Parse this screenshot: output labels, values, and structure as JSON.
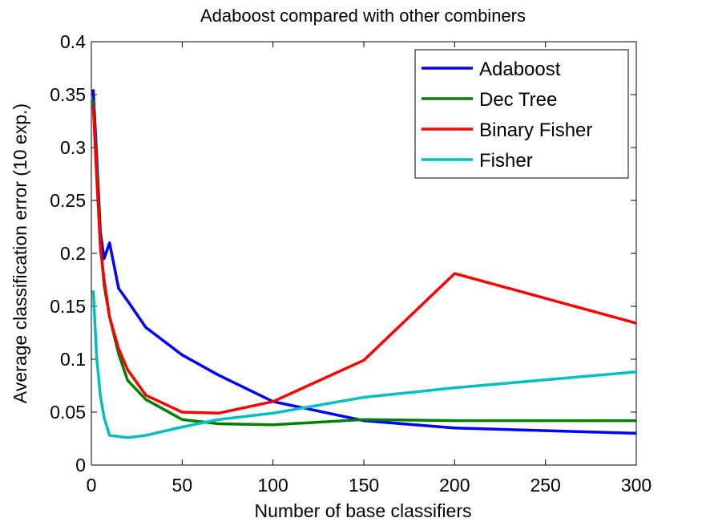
{
  "chart_data": {
    "type": "line",
    "title": "Adaboost compared with other combiners",
    "xlabel": "Number of base classifiers",
    "ylabel": "Average classification error (10 exp.)",
    "xlim": [
      0,
      300
    ],
    "ylim": [
      0,
      0.4
    ],
    "xticks": [
      "0",
      "50",
      "100",
      "150",
      "200",
      "250",
      "300"
    ],
    "yticks": [
      "0",
      "0.05",
      "0.1",
      "0.15",
      "0.2",
      "0.25",
      "0.3",
      "0.35",
      "0.4"
    ],
    "grid": false,
    "legend_position": "top-right",
    "series": [
      {
        "name": "Adaboost",
        "color": "#0000ff",
        "x": [
          1,
          3,
          5,
          7,
          10,
          15,
          20,
          30,
          50,
          70,
          100,
          150,
          200,
          300
        ],
        "y": [
          0.355,
          0.29,
          0.22,
          0.195,
          0.21,
          0.167,
          0.155,
          0.13,
          0.104,
          0.085,
          0.06,
          0.042,
          0.035,
          0.03
        ]
      },
      {
        "name": "Dec Tree",
        "color": "#008000",
        "x": [
          1,
          3,
          5,
          7,
          10,
          15,
          20,
          30,
          50,
          70,
          100,
          150,
          200,
          300
        ],
        "y": [
          0.345,
          0.28,
          0.21,
          0.17,
          0.14,
          0.105,
          0.08,
          0.062,
          0.043,
          0.039,
          0.038,
          0.043,
          0.042,
          0.042
        ]
      },
      {
        "name": "Binary Fisher",
        "color": "#ff0000",
        "x": [
          1,
          3,
          5,
          7,
          10,
          15,
          20,
          30,
          50,
          70,
          100,
          150,
          200,
          300
        ],
        "y": [
          0.34,
          0.27,
          0.205,
          0.175,
          0.14,
          0.11,
          0.09,
          0.066,
          0.05,
          0.049,
          0.06,
          0.099,
          0.181,
          0.134
        ]
      },
      {
        "name": "Fisher",
        "color": "#00bfbf",
        "x": [
          1,
          3,
          5,
          7,
          10,
          15,
          20,
          30,
          50,
          70,
          100,
          150,
          200,
          300
        ],
        "y": [
          0.165,
          0.1,
          0.065,
          0.045,
          0.028,
          0.027,
          0.026,
          0.028,
          0.036,
          0.043,
          0.049,
          0.064,
          0.073,
          0.088
        ]
      }
    ]
  }
}
